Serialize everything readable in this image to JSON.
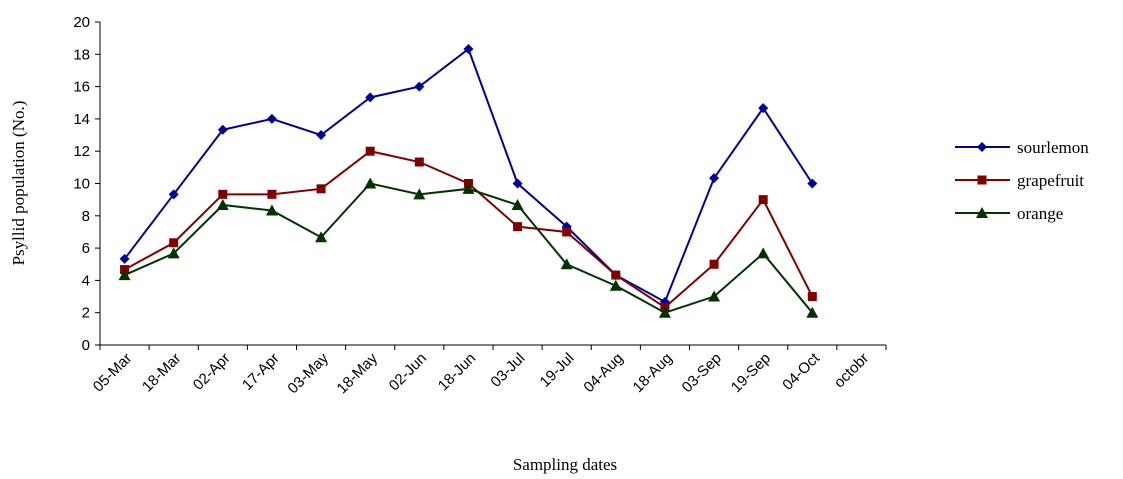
{
  "chart_data": {
    "type": "line",
    "xlabel": "Sampling dates",
    "ylabel": "Psyllid population (No.)",
    "categories": [
      "05-Mar",
      "18-Mar",
      "02-Apr",
      "17-Apr",
      "03-May",
      "18-May",
      "02-Jun",
      "18-Jun",
      "03-Jul",
      "19-Jul",
      "04-Aug",
      "18-Aug",
      "03-Sep",
      "19-Sep",
      "04-Oct",
      "octobr"
    ],
    "series": [
      {
        "name": "sourlemon",
        "color": "#000099",
        "marker": "diamond",
        "values": [
          5.33,
          9.33,
          13.33,
          14,
          13,
          15.33,
          16,
          18.33,
          10,
          7.33,
          4.33,
          2.67,
          10.33,
          14.67,
          10,
          null
        ]
      },
      {
        "name": "grapefruit",
        "color": "#800000",
        "marker": "square",
        "values": [
          4.67,
          6.33,
          9.33,
          9.33,
          9.67,
          12,
          11.33,
          10,
          7.33,
          7,
          4.33,
          2.33,
          5,
          9,
          3,
          null
        ]
      },
      {
        "name": "orange",
        "color": "#003300",
        "marker": "triangle",
        "values": [
          4.33,
          5.67,
          8.67,
          8.33,
          6.67,
          10,
          9.33,
          9.67,
          8.67,
          5,
          3.67,
          2,
          3,
          5.67,
          2,
          null
        ]
      }
    ],
    "ylim": [
      0,
      20
    ],
    "yticks": [
      0,
      2,
      4,
      6,
      8,
      10,
      12,
      14,
      16,
      18,
      20
    ],
    "legend": "right"
  }
}
